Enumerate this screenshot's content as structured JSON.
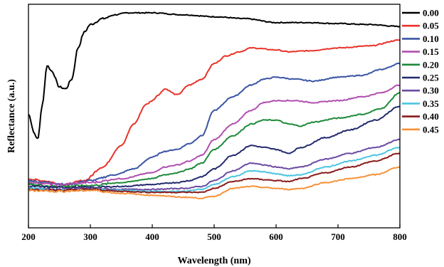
{
  "chart_data": {
    "type": "line",
    "xlabel": "Wavelength (nm)",
    "ylabel": "Reflectance (a.u.)",
    "xlim": [
      200,
      800
    ],
    "ylim": [
      0,
      100
    ],
    "x_ticks": [
      "200",
      "300",
      "400",
      "500",
      "600",
      "700",
      "800"
    ],
    "grid": false,
    "legend_position": "right",
    "series": [
      {
        "name": "0.00",
        "color": "#000000",
        "points": [
          [
            200,
            48
          ],
          [
            210,
            38
          ],
          [
            215,
            35
          ],
          [
            222,
            52
          ],
          [
            230,
            73
          ],
          [
            238,
            70
          ],
          [
            250,
            62
          ],
          [
            260,
            61
          ],
          [
            270,
            66
          ],
          [
            280,
            82
          ],
          [
            290,
            90
          ],
          [
            300,
            94
          ],
          [
            320,
            97
          ],
          [
            340,
            99
          ],
          [
            360,
            100
          ],
          [
            400,
            100
          ],
          [
            450,
            99
          ],
          [
            500,
            98
          ],
          [
            550,
            97
          ],
          [
            600,
            95
          ],
          [
            650,
            95
          ],
          [
            700,
            94.5
          ],
          [
            750,
            94
          ],
          [
            800,
            93
          ]
        ]
      },
      {
        "name": "0.05",
        "color": "#e8332a",
        "points": [
          [
            200,
            15
          ],
          [
            220,
            14
          ],
          [
            260,
            12
          ],
          [
            290,
            14
          ],
          [
            320,
            21
          ],
          [
            350,
            32
          ],
          [
            370,
            43
          ],
          [
            390,
            53
          ],
          [
            400,
            55
          ],
          [
            410,
            58
          ],
          [
            420,
            61
          ],
          [
            440,
            58
          ],
          [
            460,
            63
          ],
          [
            480,
            66
          ],
          [
            500,
            74
          ],
          [
            520,
            78
          ],
          [
            540,
            80
          ],
          [
            560,
            82
          ],
          [
            600,
            81
          ],
          [
            620,
            80
          ],
          [
            650,
            80.5
          ],
          [
            700,
            82
          ],
          [
            750,
            83
          ],
          [
            800,
            86
          ]
        ]
      },
      {
        "name": "0.10",
        "color": "#3a55a4",
        "points": [
          [
            200,
            14
          ],
          [
            230,
            13
          ],
          [
            260,
            12
          ],
          [
            300,
            14
          ],
          [
            340,
            17
          ],
          [
            370,
            20
          ],
          [
            400,
            26
          ],
          [
            420,
            29
          ],
          [
            440,
            30
          ],
          [
            460,
            33
          ],
          [
            480,
            37
          ],
          [
            500,
            50
          ],
          [
            530,
            57
          ],
          [
            560,
            63
          ],
          [
            580,
            66
          ],
          [
            600,
            67
          ],
          [
            630,
            66
          ],
          [
            660,
            65
          ],
          [
            700,
            67
          ],
          [
            740,
            68
          ],
          [
            770,
            71
          ],
          [
            800,
            74
          ]
        ]
      },
      {
        "name": "0.15",
        "color": "#b04fb0",
        "points": [
          [
            200,
            13
          ],
          [
            250,
            12
          ],
          [
            300,
            13
          ],
          [
            350,
            15
          ],
          [
            400,
            18
          ],
          [
            420,
            21
          ],
          [
            440,
            22
          ],
          [
            460,
            24
          ],
          [
            480,
            27
          ],
          [
            500,
            35
          ],
          [
            530,
            43
          ],
          [
            560,
            50
          ],
          [
            580,
            54
          ],
          [
            600,
            55
          ],
          [
            630,
            55
          ],
          [
            660,
            54
          ],
          [
            700,
            55
          ],
          [
            740,
            57
          ],
          [
            770,
            59
          ],
          [
            800,
            63
          ]
        ]
      },
      {
        "name": "0.20",
        "color": "#1e8a3a",
        "points": [
          [
            200,
            12
          ],
          [
            250,
            11
          ],
          [
            300,
            11.5
          ],
          [
            350,
            13
          ],
          [
            400,
            15
          ],
          [
            420,
            17
          ],
          [
            440,
            18
          ],
          [
            460,
            20
          ],
          [
            480,
            23
          ],
          [
            500,
            30
          ],
          [
            530,
            37
          ],
          [
            560,
            43
          ],
          [
            580,
            45
          ],
          [
            600,
            45
          ],
          [
            620,
            43
          ],
          [
            640,
            42
          ],
          [
            660,
            44
          ],
          [
            700,
            46
          ],
          [
            740,
            48
          ],
          [
            770,
            51
          ],
          [
            800,
            59
          ]
        ]
      },
      {
        "name": "0.25",
        "color": "#232a6e",
        "points": [
          [
            200,
            11
          ],
          [
            250,
            10.5
          ],
          [
            300,
            10.5
          ],
          [
            350,
            11
          ],
          [
            400,
            12
          ],
          [
            440,
            13
          ],
          [
            460,
            14
          ],
          [
            480,
            16
          ],
          [
            500,
            20
          ],
          [
            530,
            27
          ],
          [
            560,
            32
          ],
          [
            580,
            31
          ],
          [
            600,
            30
          ],
          [
            620,
            28
          ],
          [
            640,
            31
          ],
          [
            680,
            36
          ],
          [
            720,
            40
          ],
          [
            760,
            45
          ],
          [
            800,
            52
          ]
        ]
      },
      {
        "name": "0.30",
        "color": "#6a4aa3",
        "points": [
          [
            200,
            10
          ],
          [
            250,
            9.5
          ],
          [
            300,
            10
          ],
          [
            350,
            9.5
          ],
          [
            400,
            9.5
          ],
          [
            450,
            10
          ],
          [
            480,
            11
          ],
          [
            500,
            14
          ],
          [
            530,
            19
          ],
          [
            560,
            23
          ],
          [
            580,
            22
          ],
          [
            600,
            21
          ],
          [
            620,
            20
          ],
          [
            640,
            21
          ],
          [
            680,
            25
          ],
          [
            720,
            28
          ],
          [
            760,
            31
          ],
          [
            800,
            35
          ]
        ]
      },
      {
        "name": "0.35",
        "color": "#4cc5e0",
        "points": [
          [
            200,
            10
          ],
          [
            250,
            9
          ],
          [
            300,
            9.5
          ],
          [
            350,
            9
          ],
          [
            400,
            8.5
          ],
          [
            450,
            8.5
          ],
          [
            480,
            9.5
          ],
          [
            500,
            12
          ],
          [
            530,
            16
          ],
          [
            560,
            19
          ],
          [
            580,
            18.5
          ],
          [
            600,
            17.5
          ],
          [
            620,
            16.5
          ],
          [
            640,
            17
          ],
          [
            680,
            21
          ],
          [
            720,
            24
          ],
          [
            760,
            27
          ],
          [
            800,
            31
          ]
        ]
      },
      {
        "name": "0.40",
        "color": "#8a1a1a",
        "points": [
          [
            200,
            9.5
          ],
          [
            250,
            9
          ],
          [
            300,
            9.5
          ],
          [
            350,
            8.5
          ],
          [
            400,
            8
          ],
          [
            450,
            8
          ],
          [
            480,
            8
          ],
          [
            500,
            10
          ],
          [
            530,
            13.5
          ],
          [
            560,
            15
          ],
          [
            580,
            14.5
          ],
          [
            600,
            14
          ],
          [
            620,
            13.5
          ],
          [
            640,
            15
          ],
          [
            680,
            18
          ],
          [
            720,
            21
          ],
          [
            760,
            24
          ],
          [
            800,
            28
          ]
        ]
      },
      {
        "name": "0.45",
        "color": "#f7923a",
        "points": [
          [
            200,
            9
          ],
          [
            250,
            8.5
          ],
          [
            300,
            9
          ],
          [
            350,
            7.5
          ],
          [
            400,
            6.5
          ],
          [
            450,
            5.5
          ],
          [
            480,
            5
          ],
          [
            500,
            6
          ],
          [
            530,
            10
          ],
          [
            560,
            11
          ],
          [
            580,
            10.5
          ],
          [
            600,
            10
          ],
          [
            620,
            9.5
          ],
          [
            640,
            10
          ],
          [
            680,
            13
          ],
          [
            720,
            15
          ],
          [
            760,
            17
          ],
          [
            800,
            21
          ]
        ]
      }
    ]
  }
}
